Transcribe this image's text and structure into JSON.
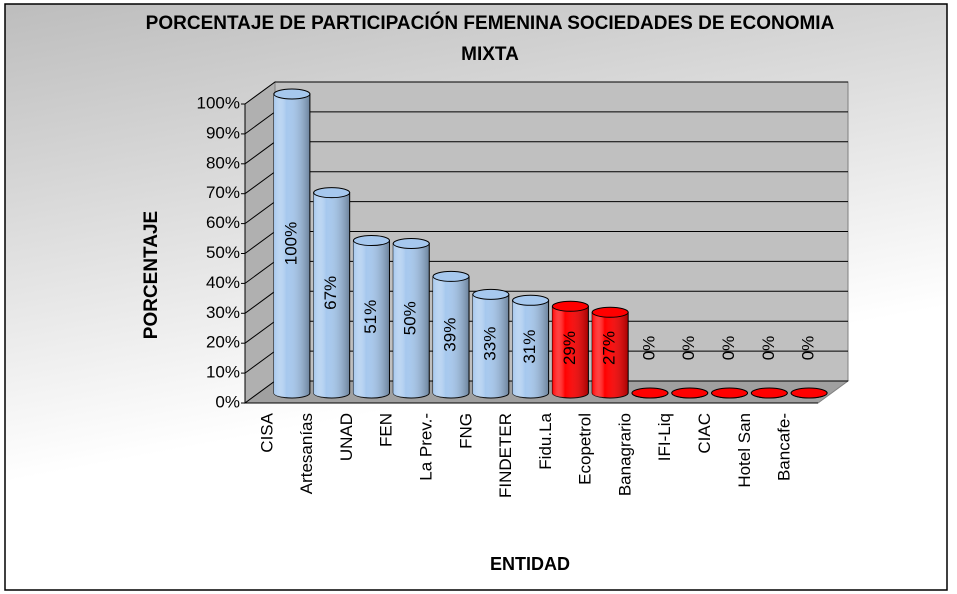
{
  "chart_data": {
    "type": "cylinder",
    "title": "PORCENTAJE DE PARTICIPACIÓN FEMENINA SOCIEDADES DE ECONOMIA MIXTA",
    "y_label": "PORCENTAJE",
    "x_label": "ENTIDAD",
    "categories": [
      "CISA",
      "Artesanías",
      "UNAD",
      "FEN",
      "La Prev.-",
      "FNG",
      "FINDETER",
      "Fidu.La",
      "Ecopetrol",
      "Banagrario",
      "IFI-Liq",
      "CIAC",
      "Hotel San",
      "Bancafe-"
    ],
    "values": [
      100,
      67,
      51,
      50,
      39,
      33,
      31,
      29,
      27,
      0,
      0,
      0,
      0,
      0
    ],
    "value_labels": [
      "100%",
      "67%",
      "51%",
      "50%",
      "39%",
      "33%",
      "31%",
      "29%",
      "27%",
      "0%",
      "0%",
      "0%",
      "0%",
      "0%"
    ],
    "colors": [
      "#a6c8ee",
      "#a6c8ee",
      "#a6c8ee",
      "#a6c8ee",
      "#a6c8ee",
      "#a6c8ee",
      "#a6c8ee",
      "#ff0000",
      "#ff0000",
      "#ff0000",
      "#ff0000",
      "#ff0000",
      "#ff0000",
      "#ff0000"
    ],
    "ylim": [
      0,
      100
    ],
    "yticks": [
      {
        "value": 0,
        "label": "0%"
      },
      {
        "value": 10,
        "label": "10%"
      },
      {
        "value": 20,
        "label": "20%"
      },
      {
        "value": 30,
        "label": "30%"
      },
      {
        "value": 40,
        "label": "40%"
      },
      {
        "value": 50,
        "label": "50%"
      },
      {
        "value": 60,
        "label": "60%"
      },
      {
        "value": 70,
        "label": "70%"
      },
      {
        "value": 80,
        "label": "80%"
      },
      {
        "value": 90,
        "label": "90%"
      },
      {
        "value": 100,
        "label": "100%"
      }
    ],
    "grid": true
  }
}
